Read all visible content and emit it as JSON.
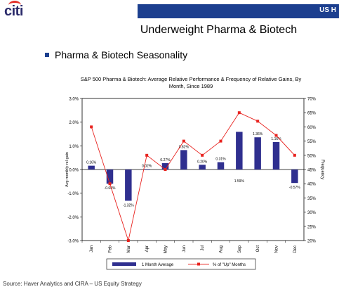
{
  "header": {
    "logo_text": "citi",
    "banner_text": "US H",
    "title": "Underweight Pharma & Biotech"
  },
  "bullet": {
    "text": "Pharma & Biotech Seasonality"
  },
  "chart_data": {
    "type": "bar",
    "title": "S&P 500 Pharma & Biotech: Average Relative Performance & Frequency of Relative Gains, By Month, Since 1989",
    "categories": [
      "Jan",
      "Feb",
      "Mar",
      "Apr",
      "May",
      "Jun",
      "Jul",
      "Aug",
      "Sep",
      "Oct",
      "Nov",
      "Dec"
    ],
    "series": [
      {
        "name": "1 Month Average",
        "type": "bar",
        "axis": "left",
        "color": "#2f2f8f",
        "values": [
          0.16,
          -0.6,
          -1.32,
          0.02,
          0.27,
          0.82,
          0.2,
          0.31,
          1.59,
          1.36,
          1.16,
          -0.57
        ],
        "labels": [
          "0.16%",
          "-0.60%",
          "-1.32%",
          "0.02%",
          "0.27%",
          "0.82%",
          "0.20%",
          "0.31%",
          "1.59%",
          "1.36%",
          "1.16%",
          "-0.57%"
        ]
      },
      {
        "name": "% of \"Up\" Months",
        "type": "line",
        "axis": "right",
        "color": "#e8231f",
        "values": [
          60,
          40,
          20,
          50,
          45,
          55,
          50,
          55,
          65,
          62,
          57,
          50
        ]
      }
    ],
    "ylabel": "Avg monthly rel gain",
    "y2label": "Frequency",
    "ylim": [
      -3.0,
      3.0
    ],
    "y2lim": [
      20,
      70
    ],
    "yticks": [
      "-3.0%",
      "-2.0%",
      "-1.0%",
      "0.0%",
      "1.0%",
      "2.0%",
      "3.0%"
    ],
    "y2ticks": [
      "20%",
      "25%",
      "30%",
      "35%",
      "40%",
      "45%",
      "50%",
      "55%",
      "60%",
      "65%",
      "70%"
    ],
    "grid": false,
    "legend_position": "bottom"
  },
  "footer": {
    "source": "Source: Haver Analytics and CIRA – US Equity Strategy"
  }
}
